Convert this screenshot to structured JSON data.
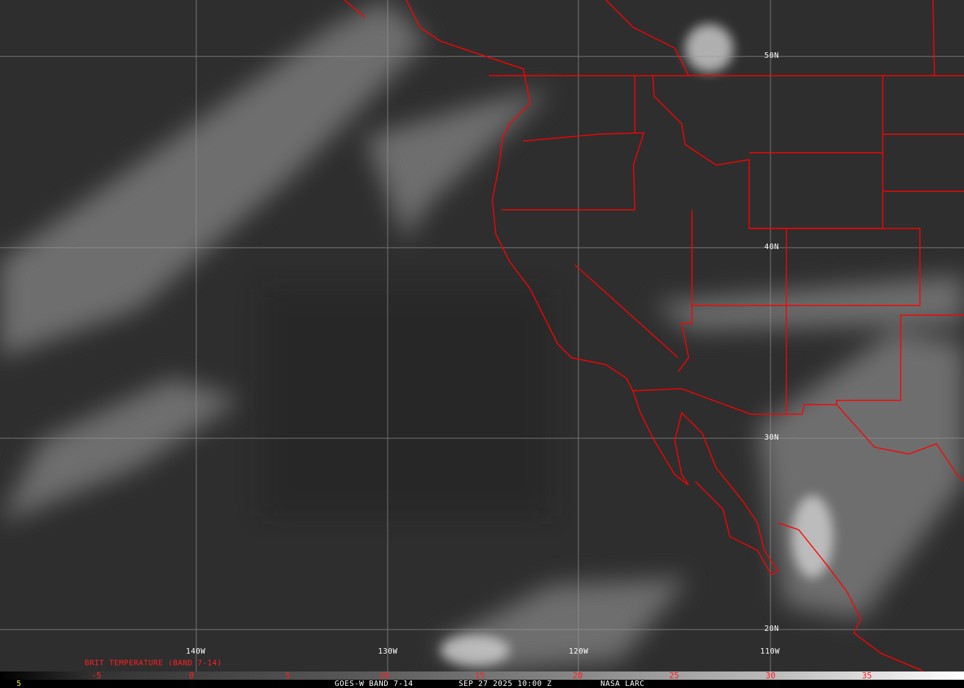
{
  "title": "GOES-W BAND 7-14",
  "datetime": "SEP 27 2025 10:00 Z",
  "source": "NASA LARC",
  "colorbar_label": "BRIT TEMPERATURE (BAND 7-14)",
  "colorbar_ticks": [
    "-5",
    "0",
    "5",
    "10",
    "15",
    "20",
    "25",
    "30",
    "35"
  ],
  "corner_value": "5",
  "longitude_labels": [
    "140W",
    "130W",
    "120W",
    "110W"
  ],
  "latitude_labels": [
    "50N",
    "40N",
    "30N",
    "20N"
  ],
  "colors": {
    "background": "#303030",
    "borders": "#ff0000",
    "grid": "#9a9a9a",
    "corner_value": "#ffff00"
  }
}
